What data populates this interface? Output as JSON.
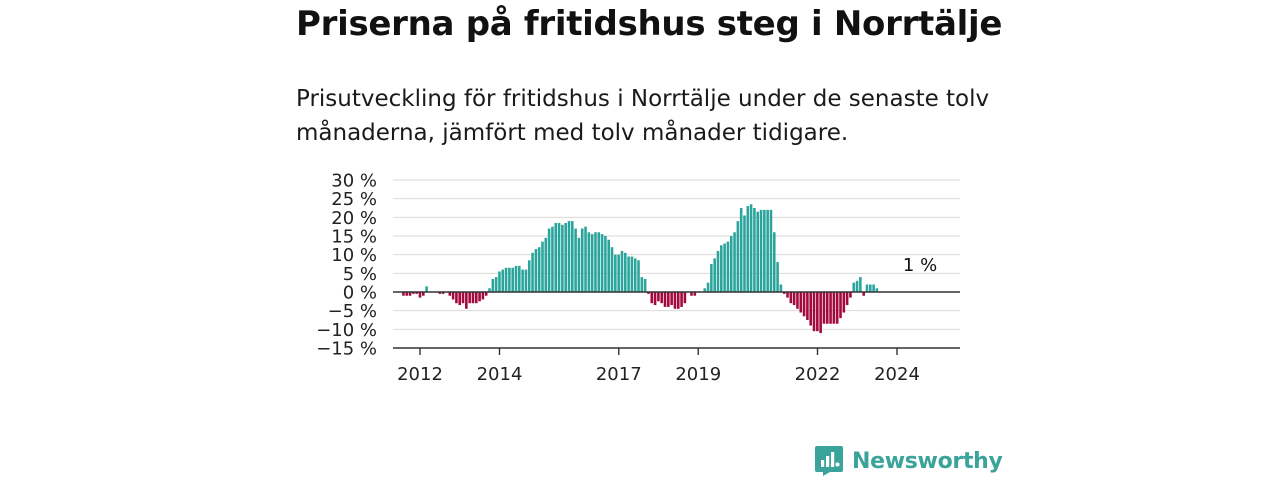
{
  "header": {
    "title": "Priserna på fritidshus steg i Norrtälje",
    "subtitle": "Prisutveckling för fritidshus i Norrtälje under de senaste tolv månaderna, jämfört med tolv månader tidigare."
  },
  "brand": {
    "name": "Newsworthy",
    "icon": "newsworthy-logo-icon"
  },
  "colors": {
    "positive": "#2ba59c",
    "negative": "#a3093c",
    "grid": "#d9d9d9",
    "axis": "#333333",
    "brand": "#3aa39a"
  },
  "chart_data": {
    "type": "bar",
    "ylim": [
      -15,
      30
    ],
    "y_ticks": [
      30,
      25,
      20,
      15,
      10,
      5,
      0,
      -5,
      -10,
      -15
    ],
    "y_tick_labels": [
      "30 %",
      "25 %",
      "20 %",
      "15 %",
      "10 %",
      "5 %",
      "0 %",
      "−5 %",
      "−10 %",
      "−15 %"
    ],
    "x_ticks": [
      2012,
      2014,
      2017,
      2019,
      2022,
      2024
    ],
    "x_tick_labels": [
      "2012",
      "2014",
      "2017",
      "2019",
      "2022",
      "2024"
    ],
    "grid": true,
    "x_start": 2011.25,
    "x_step": 0.0833,
    "values": [
      0,
      0,
      0,
      0,
      -1,
      -1,
      -1,
      -0.5,
      -0.5,
      -1.5,
      -1,
      1.5,
      0,
      0,
      0,
      -0.5,
      -0.5,
      0,
      -1,
      -2,
      -3,
      -3.5,
      -3,
      -4.5,
      -3,
      -3,
      -3,
      -2.5,
      -2,
      -1,
      1,
      3.5,
      4,
      5.5,
      6,
      6.5,
      6.5,
      6.5,
      7,
      7,
      6,
      6,
      8.5,
      10.5,
      11.5,
      12,
      13.5,
      14.5,
      17,
      17.5,
      18.5,
      18.5,
      18,
      18.5,
      19,
      19,
      17,
      14.5,
      17,
      17.5,
      16,
      15.5,
      16,
      16,
      15.5,
      15,
      14,
      12,
      10,
      10,
      11,
      10.5,
      9.5,
      9.5,
      9,
      8.5,
      4,
      3.5,
      -0.5,
      -3,
      -3.5,
      -2.5,
      -3,
      -4,
      -4,
      -3.5,
      -4.5,
      -4.5,
      -4,
      -3,
      0,
      -1,
      -1,
      0,
      0,
      1,
      2.5,
      7.5,
      9,
      11,
      12.5,
      13,
      13.5,
      15,
      16,
      19,
      22.5,
      20.5,
      23,
      23.5,
      22.5,
      21.5,
      22,
      22,
      22,
      22,
      16,
      8,
      2,
      -0.5,
      -1.5,
      -3,
      -3.5,
      -4.5,
      -5.5,
      -6.5,
      -7.5,
      -9,
      -10.5,
      -10.5,
      -11,
      -8.5,
      -8.5,
      -8.5,
      -8.5,
      -8.5,
      -7,
      -5.5,
      -3.5,
      -1.5,
      2.5,
      3,
      4,
      -1,
      2,
      2,
      2,
      1
    ],
    "annotation": {
      "text": "1 %",
      "x": 2024.58,
      "y": 4
    }
  }
}
